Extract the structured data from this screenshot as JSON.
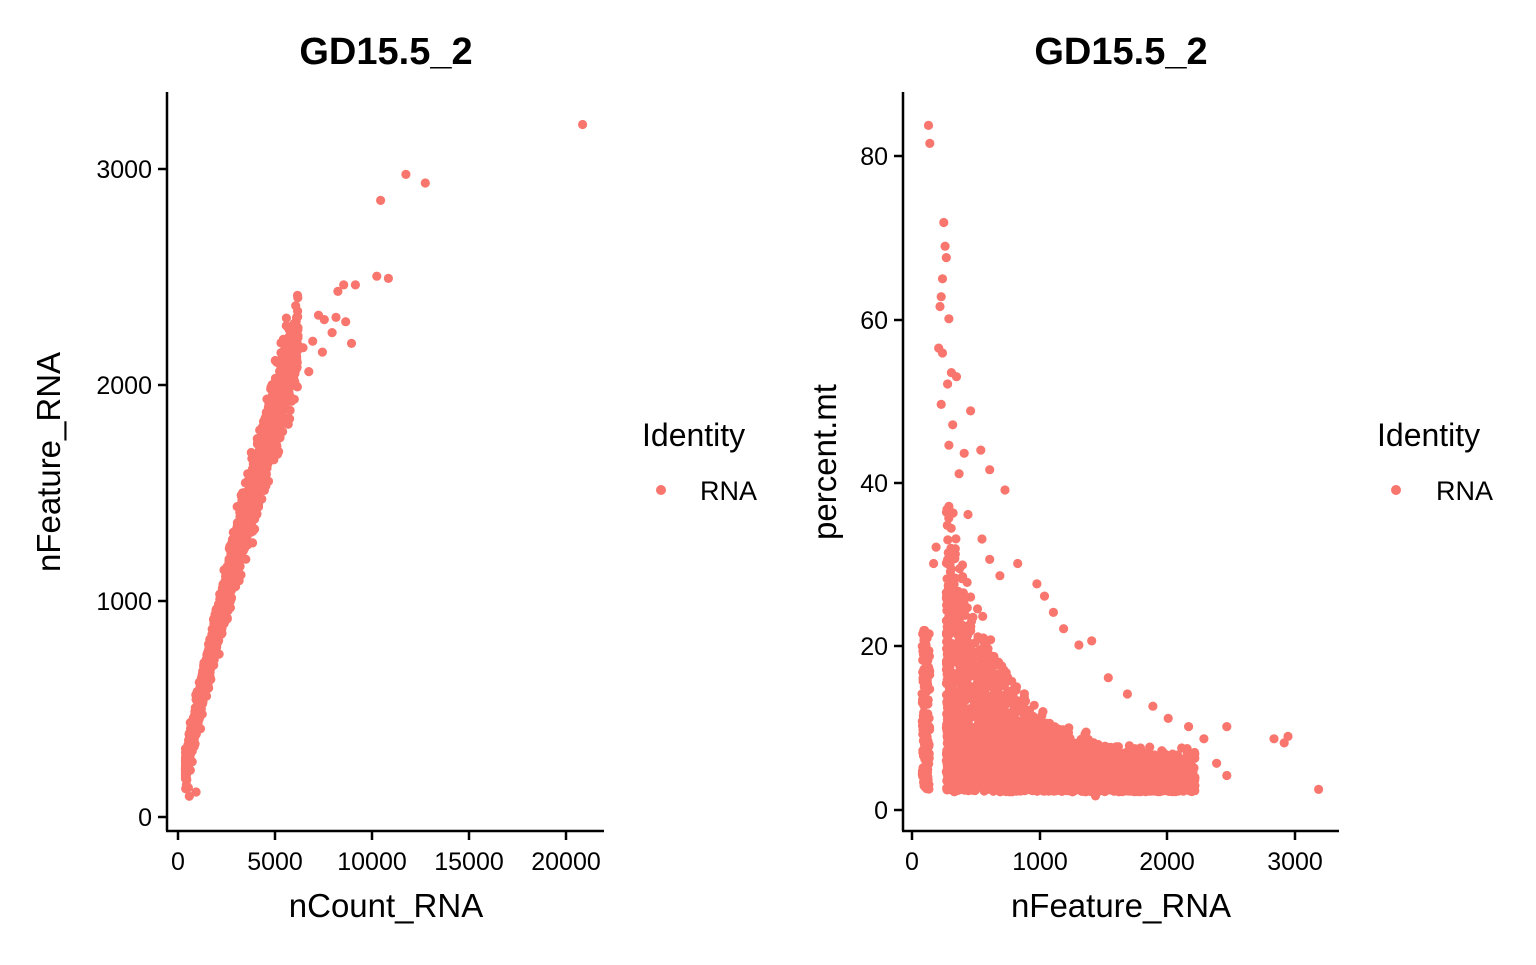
{
  "point_color": "#F8766D",
  "chart_data": [
    {
      "type": "scatter",
      "title": "GD15.5_2",
      "xlabel": "nCount_RNA",
      "ylabel": "nFeature_RNA",
      "xlim": [
        -500,
        22000
      ],
      "ylim": [
        -70,
        3340
      ],
      "x_ticks": [
        0,
        5000,
        10000,
        15000,
        20000
      ],
      "x_tick_labels": [
        "0",
        "5000",
        "10000",
        "15000",
        "20000"
      ],
      "y_ticks": [
        0,
        1000,
        2000,
        3000
      ],
      "y_tick_labels": [
        "0",
        "1000",
        "2000",
        "3000"
      ],
      "legend": {
        "title": "Identity",
        "entries": [
          "RNA"
        ],
        "placement": "right"
      },
      "series": [
        {
          "name": "RNA",
          "points": [
            [
              20900,
              3190
            ],
            [
              11800,
              2960
            ],
            [
              12800,
              2920
            ],
            [
              10500,
              2840
            ],
            [
              10300,
              2490
            ],
            [
              10900,
              2480
            ],
            [
              9200,
              2450
            ],
            [
              8600,
              2450
            ],
            [
              8300,
              2420
            ],
            [
              8700,
              2280
            ],
            [
              8200,
              2300
            ],
            [
              8000,
              2230
            ],
            [
              7300,
              2310
            ],
            [
              7600,
              2290
            ],
            [
              7000,
              2190
            ],
            [
              6500,
              2160
            ],
            [
              9000,
              2180
            ],
            [
              6800,
              2050
            ],
            [
              7500,
              2140
            ],
            [
              6200,
              2070
            ],
            [
              5900,
              2030
            ],
            [
              5600,
              1950
            ],
            [
              5300,
              1890
            ],
            [
              5000,
              1800
            ],
            [
              4600,
              1680
            ],
            [
              4200,
              1560
            ],
            [
              3800,
              1430
            ],
            [
              3400,
              1300
            ],
            [
              3000,
              1160
            ],
            [
              2600,
              1010
            ],
            [
              2200,
              860
            ],
            [
              1800,
              700
            ],
            [
              1400,
              560
            ],
            [
              1100,
              430
            ],
            [
              900,
              320
            ],
            [
              700,
              210
            ],
            [
              600,
              130
            ],
            [
              650,
              90
            ],
            [
              1000,
              110
            ],
            [
              800,
              250
            ]
          ]
        }
      ]
    },
    {
      "type": "scatter",
      "title": "GD15.5_2",
      "xlabel": "nFeature_RNA",
      "ylabel": "percent.mt",
      "xlim": [
        -60,
        3360
      ],
      "ylim": [
        -2.8,
        87.8
      ],
      "x_ticks": [
        0,
        1000,
        2000,
        3000
      ],
      "x_tick_labels": [
        "0",
        "1000",
        "2000",
        "3000"
      ],
      "y_ticks": [
        0,
        20,
        40,
        60,
        80
      ],
      "y_tick_labels": [
        "0",
        "20",
        "40",
        "60",
        "80"
      ],
      "legend": {
        "title": "Identity",
        "entries": [
          "RNA"
        ],
        "placement": "right"
      },
      "series": [
        {
          "name": "RNA",
          "points": [
            [
              140,
              83.7
            ],
            [
              150,
              81.5
            ],
            [
              260,
              71.8
            ],
            [
              270,
              68.9
            ],
            [
              280,
              67.5
            ],
            [
              250,
              64.9
            ],
            [
              240,
              62.7
            ],
            [
              230,
              61.5
            ],
            [
              300,
              60.0
            ],
            [
              220,
              56.4
            ],
            [
              250,
              55.8
            ],
            [
              320,
              53.4
            ],
            [
              290,
              52.0
            ],
            [
              360,
              52.9
            ],
            [
              240,
              49.5
            ],
            [
              330,
              47.0
            ],
            [
              470,
              48.7
            ],
            [
              300,
              44.5
            ],
            [
              420,
              43.5
            ],
            [
              550,
              43.9
            ],
            [
              380,
              41.0
            ],
            [
              620,
              41.5
            ],
            [
              740,
              39.0
            ],
            [
              300,
              37.0
            ],
            [
              450,
              36.0
            ],
            [
              560,
              33.0
            ],
            [
              620,
              30.5
            ],
            [
              700,
              28.5
            ],
            [
              840,
              30.0
            ],
            [
              990,
              27.5
            ],
            [
              1050,
              26.0
            ],
            [
              1120,
              24.0
            ],
            [
              1200,
              22.0
            ],
            [
              1320,
              20.0
            ],
            [
              1420,
              20.5
            ],
            [
              1550,
              16.0
            ],
            [
              1700,
              14.0
            ],
            [
              1900,
              12.5
            ],
            [
              2020,
              11.0
            ],
            [
              2180,
              10.0
            ],
            [
              2480,
              10.0
            ],
            [
              2300,
              8.5
            ],
            [
              2400,
              5.5
            ],
            [
              2480,
              4.0
            ],
            [
              2850,
              8.5
            ],
            [
              2960,
              8.8
            ],
            [
              2930,
              8.0
            ],
            [
              3200,
              2.3
            ],
            [
              180,
              30.0
            ],
            [
              200,
              32.0
            ],
            [
              120,
              20.0
            ],
            [
              100,
              10.0
            ],
            [
              110,
              3.0
            ],
            [
              500,
              3.5
            ],
            [
              800,
              2.5
            ],
            [
              1000,
              2.5
            ],
            [
              1450,
              1.5
            ],
            [
              1800,
              3.0
            ]
          ]
        }
      ]
    }
  ]
}
